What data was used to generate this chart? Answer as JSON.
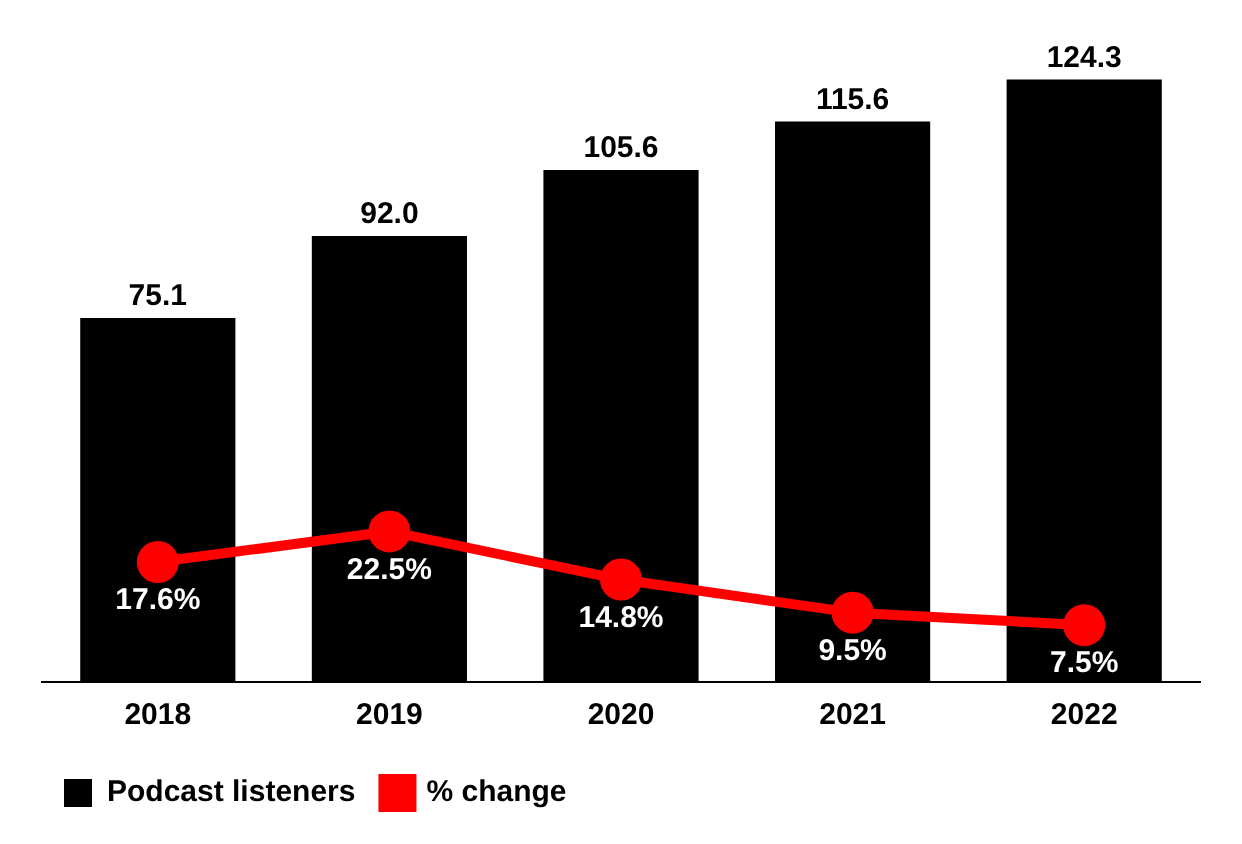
{
  "chart_data": {
    "type": "bar",
    "categories": [
      "2018",
      "2019",
      "2020",
      "2021",
      "2022"
    ],
    "series": [
      {
        "name": "Podcast listeners",
        "color": "#000000",
        "values": [
          75.1,
          92.0,
          105.6,
          115.6,
          124.3
        ],
        "value_labels": [
          "75.1",
          "92.0",
          "105.6",
          "115.6",
          "124.3"
        ]
      },
      {
        "name": "% change",
        "type": "line",
        "axis": "y2",
        "color": "#ff0000",
        "marker": "circle",
        "values": [
          17.6,
          22.5,
          14.8,
          9.5,
          7.5
        ],
        "value_labels": [
          "17.6%",
          "22.5%",
          "14.8%",
          "9.5%",
          "7.5%"
        ]
      }
    ],
    "ylim": [
      0,
      125
    ],
    "y2lim": [
      -1.6,
      95.4
    ],
    "tick_labels": "x",
    "grid": false,
    "legend": "bottom left"
  }
}
